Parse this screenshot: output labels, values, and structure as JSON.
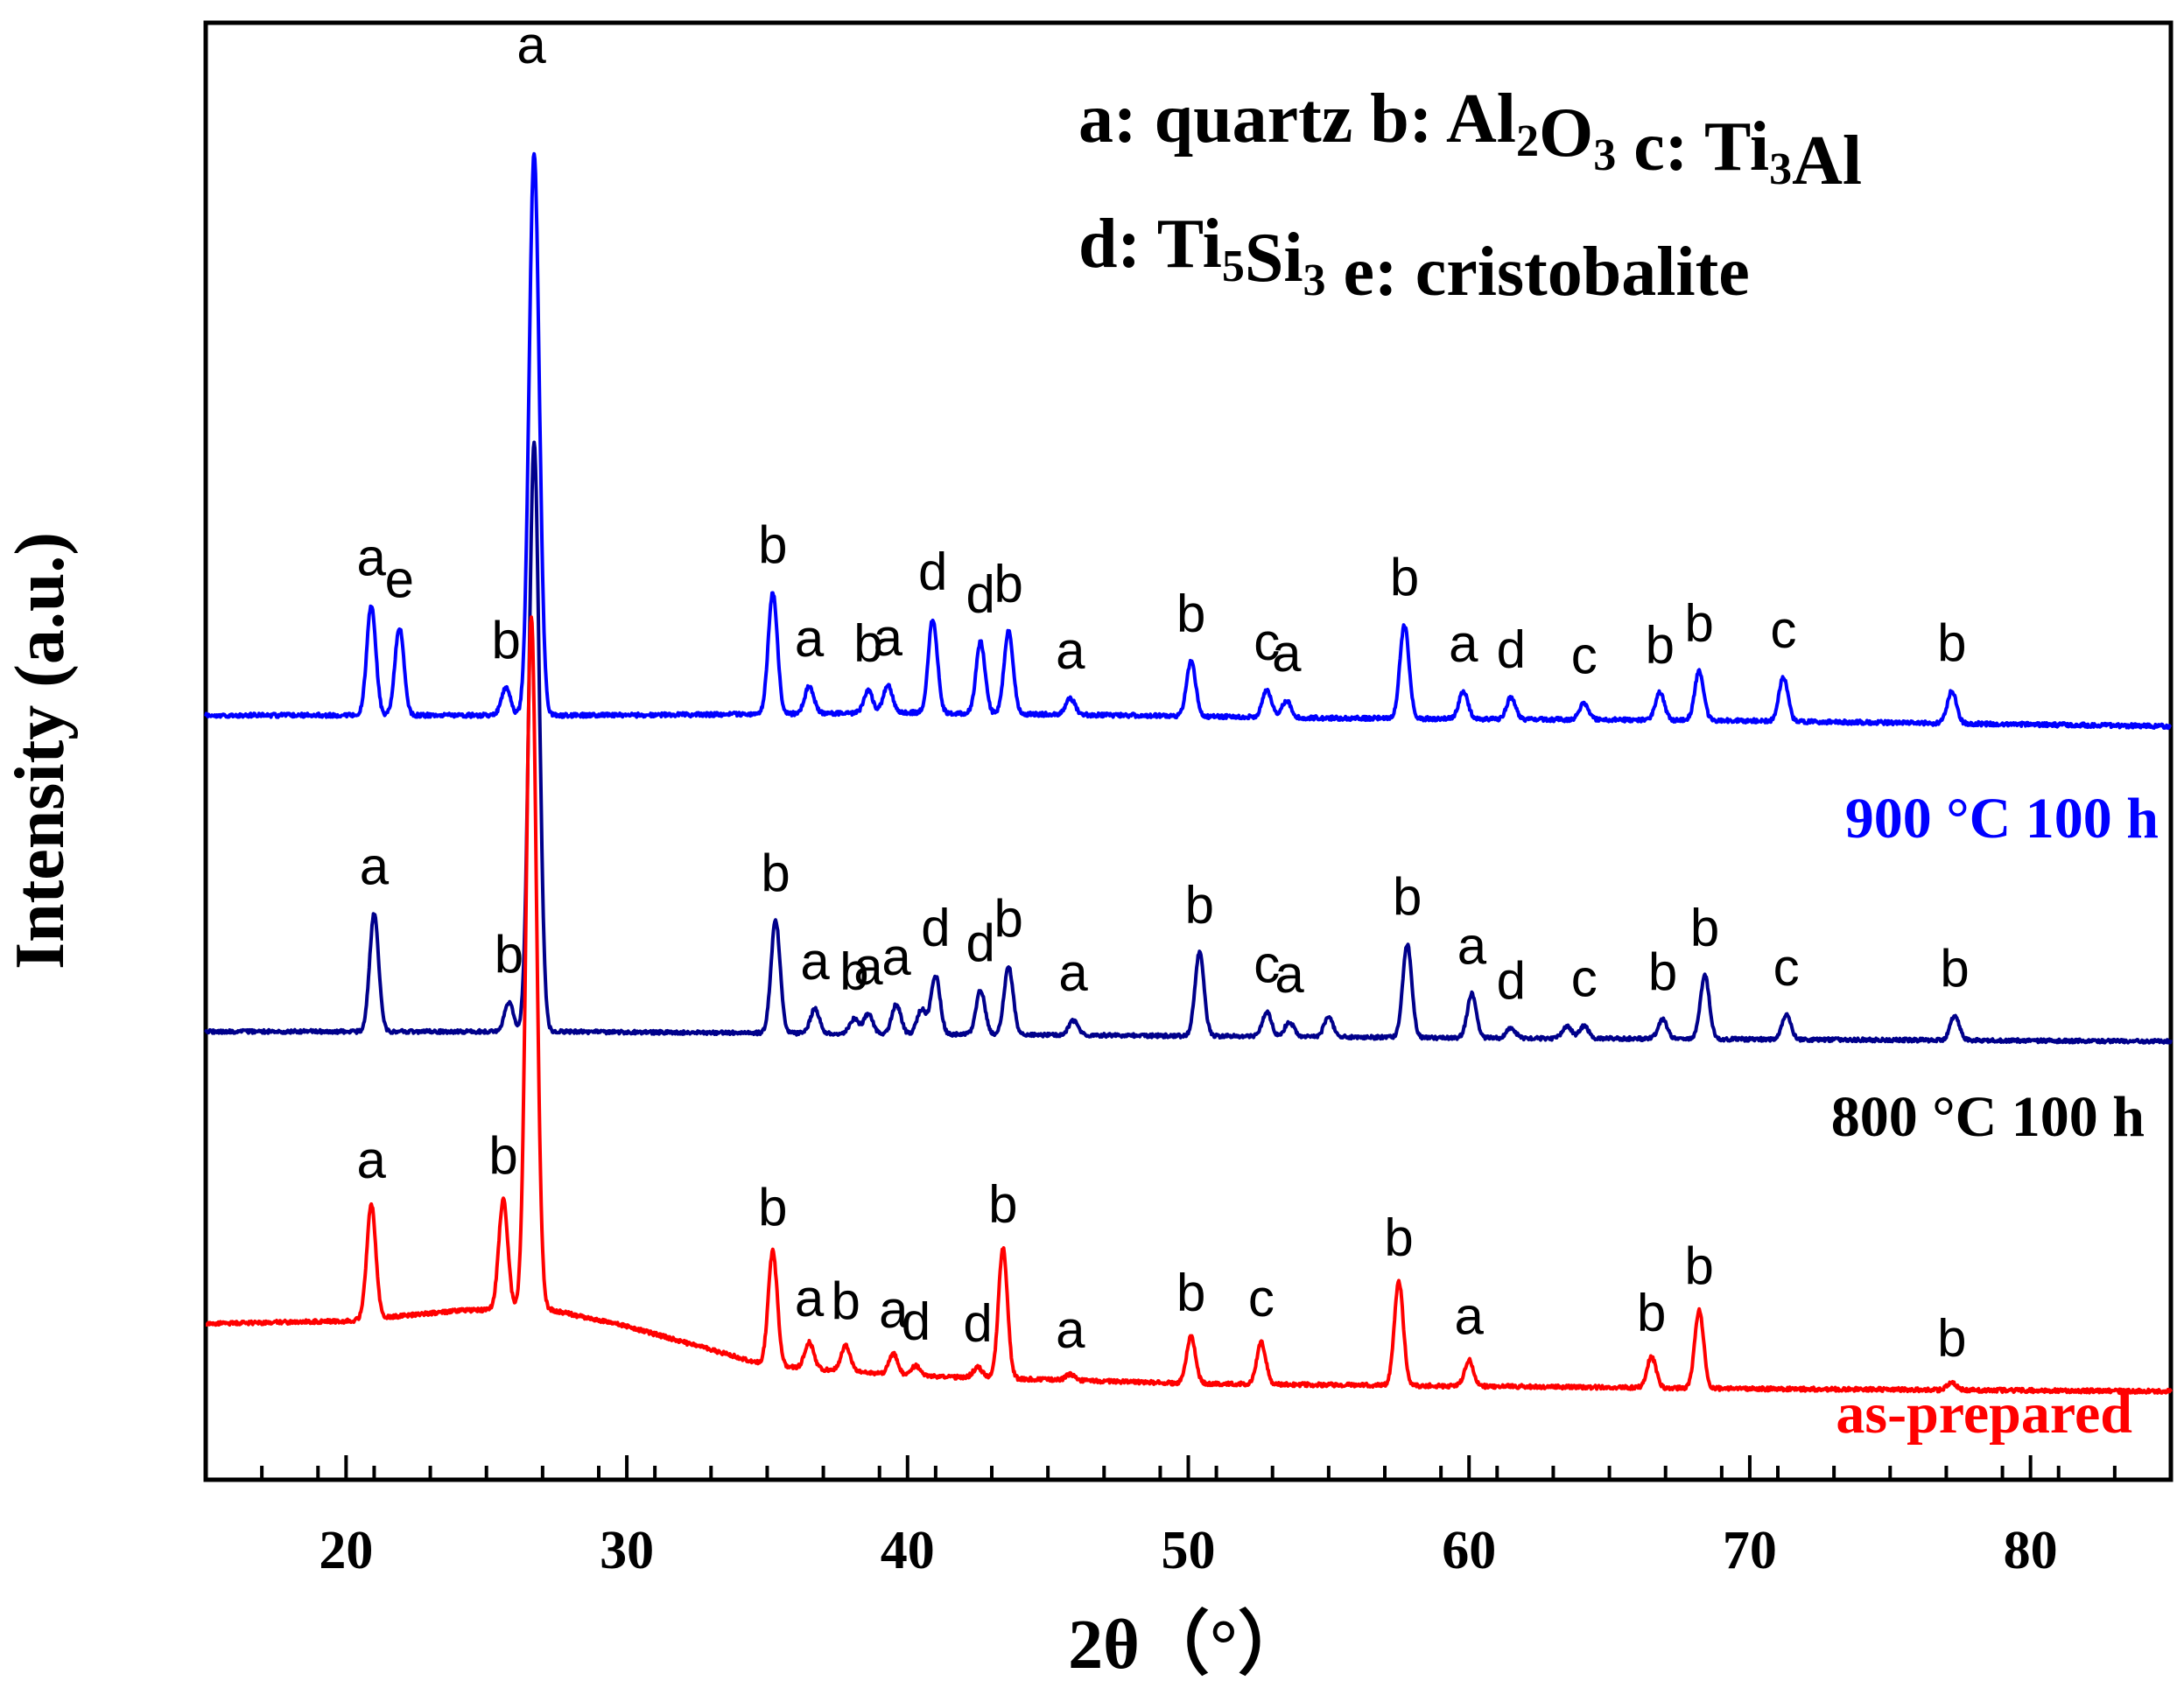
{
  "chart_data": {
    "type": "line",
    "xlabel": "2θ（°）",
    "ylabel": "Intensity (a.u.)",
    "xlim": [
      15,
      85
    ],
    "x_ticks": [
      20,
      30,
      40,
      50,
      60,
      70,
      80
    ],
    "y_ticks_shown": false,
    "grid": false,
    "legend_text": {
      "line1": [
        {
          "text": "a: quartz  b: Al"
        },
        {
          "text": "2",
          "sub": true
        },
        {
          "text": "O"
        },
        {
          "text": "3",
          "sub": true
        },
        {
          "text": "  c: Ti"
        },
        {
          "text": "3",
          "sub": true
        },
        {
          "text": "Al"
        }
      ],
      "line2": [
        {
          "text": "d: Ti"
        },
        {
          "text": "5",
          "sub": true
        },
        {
          "text": "Si"
        },
        {
          "text": "3",
          "sub": true
        },
        {
          "text": "  e: cristobalite"
        }
      ]
    },
    "series": [
      {
        "name": "as-prepared",
        "color": "#ff0000",
        "baseline": [
          [
            15,
            13
          ],
          [
            20,
            13.5
          ],
          [
            24,
            15.5
          ],
          [
            27,
            16
          ],
          [
            30,
            12.5
          ],
          [
            35,
            5
          ],
          [
            40,
            3
          ],
          [
            50,
            1.5
          ],
          [
            60,
            1
          ],
          [
            70,
            0.5
          ],
          [
            85,
            0
          ]
        ],
        "peaks": [
          {
            "x": 20.9,
            "h": 22,
            "label": "a"
          },
          {
            "x": 25.6,
            "h": 21,
            "label": "b"
          },
          {
            "x": 26.6,
            "h": 133,
            "label": "a",
            "w": 0.18
          },
          {
            "x": 35.2,
            "h": 22,
            "label": "b"
          },
          {
            "x": 36.5,
            "h": 5,
            "label": "a"
          },
          {
            "x": 37.8,
            "h": 5,
            "label": "b"
          },
          {
            "x": 39.5,
            "h": 4,
            "label": "a"
          },
          {
            "x": 40.3,
            "h": 2,
            "label": "d"
          },
          {
            "x": 42.5,
            "h": 2,
            "label": "d"
          },
          {
            "x": 43.4,
            "h": 25,
            "label": "b"
          },
          {
            "x": 45.8,
            "h": 1.2,
            "label": "a"
          },
          {
            "x": 50.1,
            "h": 9,
            "label": "b"
          },
          {
            "x": 52.6,
            "h": 8,
            "label": "c"
          },
          {
            "x": 57.5,
            "h": 20,
            "label": "b"
          },
          {
            "x": 60.0,
            "h": 5,
            "label": "a"
          },
          {
            "x": 66.5,
            "h": 6,
            "label": "b"
          },
          {
            "x": 68.2,
            "h": 15,
            "label": "b"
          },
          {
            "x": 77.2,
            "h": 1.5,
            "label": "b"
          }
        ]
      },
      {
        "name": "800 °C 100 h",
        "color": "#00008b",
        "baseline": [
          [
            15,
            2
          ],
          [
            27,
            2
          ],
          [
            40,
            1.5
          ],
          [
            60,
            0.7
          ],
          [
            85,
            0
          ]
        ],
        "peaks": [
          {
            "x": 21.0,
            "h": 24,
            "label": "a"
          },
          {
            "x": 25.8,
            "h": 6,
            "label": "b"
          },
          {
            "x": 26.7,
            "h": 120,
            "label": "",
            "w": 0.18
          },
          {
            "x": 35.3,
            "h": 23,
            "label": "b"
          },
          {
            "x": 36.7,
            "h": 5,
            "label": "a"
          },
          {
            "x": 38.1,
            "h": 3,
            "label": "b"
          },
          {
            "x": 38.6,
            "h": 4,
            "label": "a"
          },
          {
            "x": 39.6,
            "h": 6,
            "label": "a"
          },
          {
            "x": 40.5,
            "h": 5,
            "label": ""
          },
          {
            "x": 41.0,
            "h": 12,
            "label": "d"
          },
          {
            "x": 42.6,
            "h": 9,
            "label": "d"
          },
          {
            "x": 43.6,
            "h": 14,
            "label": "b"
          },
          {
            "x": 45.9,
            "h": 3,
            "label": "a"
          },
          {
            "x": 50.4,
            "h": 17,
            "label": "b"
          },
          {
            "x": 52.8,
            "h": 5,
            "label": "c"
          },
          {
            "x": 53.6,
            "h": 3,
            "label": "a"
          },
          {
            "x": 55.0,
            "h": 4,
            "label": ""
          },
          {
            "x": 57.8,
            "h": 19,
            "label": "b"
          },
          {
            "x": 60.1,
            "h": 9,
            "label": "a"
          },
          {
            "x": 61.5,
            "h": 2,
            "label": "d"
          },
          {
            "x": 63.5,
            "h": 2.5,
            "label": ""
          },
          {
            "x": 64.1,
            "h": 2.5,
            "label": "c"
          },
          {
            "x": 66.9,
            "h": 4,
            "label": "b"
          },
          {
            "x": 68.4,
            "h": 13,
            "label": "b"
          },
          {
            "x": 71.3,
            "h": 5,
            "label": "c"
          },
          {
            "x": 77.3,
            "h": 5,
            "label": "b"
          }
        ]
      },
      {
        "name": "900 °C 100 h",
        "color": "#0000ff",
        "baseline": [
          [
            15,
            2
          ],
          [
            30,
            2
          ],
          [
            40,
            2.5
          ],
          [
            55,
            1.5
          ],
          [
            70,
            1
          ],
          [
            85,
            0
          ]
        ],
        "peaks": [
          {
            "x": 20.9,
            "h": 20,
            "label": "a"
          },
          {
            "x": 21.9,
            "h": 16,
            "label": "e"
          },
          {
            "x": 25.7,
            "h": 5,
            "label": "b"
          },
          {
            "x": 26.7,
            "h": 102,
            "label": "",
            "w": 0.18
          },
          {
            "x": 35.2,
            "h": 22,
            "label": "b"
          },
          {
            "x": 36.5,
            "h": 5,
            "label": "a"
          },
          {
            "x": 38.6,
            "h": 4,
            "label": "b"
          },
          {
            "x": 39.3,
            "h": 5,
            "label": "a"
          },
          {
            "x": 40.9,
            "h": 17,
            "label": "d"
          },
          {
            "x": 42.6,
            "h": 13,
            "label": "d"
          },
          {
            "x": 43.6,
            "h": 15,
            "label": "b"
          },
          {
            "x": 45.8,
            "h": 3,
            "label": "a"
          },
          {
            "x": 50.1,
            "h": 10,
            "label": "b"
          },
          {
            "x": 52.8,
            "h": 5,
            "label": "c"
          },
          {
            "x": 53.5,
            "h": 3,
            "label": "a"
          },
          {
            "x": 57.7,
            "h": 17,
            "label": "b"
          },
          {
            "x": 59.8,
            "h": 5,
            "label": "a"
          },
          {
            "x": 61.5,
            "h": 4,
            "label": "d"
          },
          {
            "x": 64.1,
            "h": 3,
            "label": "c"
          },
          {
            "x": 66.8,
            "h": 5,
            "label": "b"
          },
          {
            "x": 68.2,
            "h": 9,
            "label": "b"
          },
          {
            "x": 71.2,
            "h": 8,
            "label": "c"
          },
          {
            "x": 77.2,
            "h": 6,
            "label": "b"
          }
        ]
      }
    ]
  }
}
